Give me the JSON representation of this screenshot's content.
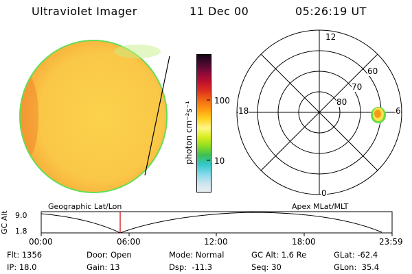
{
  "header": {
    "instrument": "Ultraviolet Imager",
    "date": "11 Dec 00",
    "time": "05:26:19 UT"
  },
  "colorbar": {
    "unit_label": "photon cm⁻²s⁻¹",
    "ticks": [
      {
        "label": "100",
        "value": 100
      },
      {
        "label": "10",
        "value": 10
      }
    ],
    "colors": [
      "#e8eef2",
      "#c8e4ee",
      "#7fd8e8",
      "#32c8c8",
      "#3cbf55",
      "#8edc22",
      "#d8ee1e",
      "#fff78a",
      "#ffd21f",
      "#ff9b0f",
      "#f26a14",
      "#e0321e",
      "#c0102c",
      "#8a0a3a",
      "#4a0a30",
      "#150414"
    ]
  },
  "polar": {
    "hour_labels": [
      "12",
      "18",
      "6",
      "0"
    ],
    "lat_labels": [
      "60",
      "70",
      "80"
    ]
  },
  "timeline": {
    "left_title": "Geographic Lat/Lon",
    "right_title": "Apex MLat/MLT",
    "axis_title": "GC Alt",
    "y_ticks": [
      "9.0",
      "1.8"
    ],
    "x_ticks": [
      "00:00",
      "06:00",
      "12:00",
      "18:00",
      "23:59"
    ],
    "marker_time": "05:26"
  },
  "info": {
    "row1": {
      "flt": "Flt: 1356",
      "door": "Door: Open",
      "mode": "Mode: Normal",
      "gc_alt": "GC Alt: 1.6 Re",
      "glat": "GLat: -62.4"
    },
    "row2": {
      "ip": "IP: 18.0",
      "gain": "Gain: 13",
      "dsp": "Dsp:  -11.3",
      "seq": "Seq: 30",
      "glon": "GLon:  35.4"
    }
  },
  "colors": {
    "disk_base": "#fbd24a",
    "disk_edge": "#44cc44",
    "marker": "#d01010"
  }
}
